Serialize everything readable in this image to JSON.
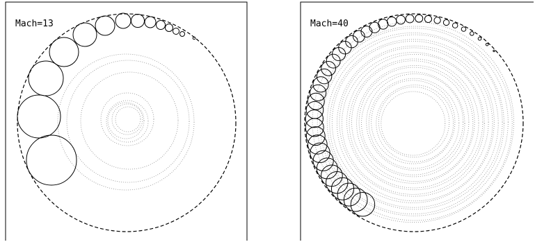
{
  "panels": [
    {
      "label": "Mach=13",
      "mach": 13,
      "boundary_style": "dashed",
      "guide_circle_style": "dotted gray",
      "circle_chain_count": 14
    },
    {
      "label": "Mach=40",
      "mach": 40,
      "boundary_style": "dashed",
      "guide_circle_style": "dotted gray",
      "circle_chain_count": 40
    }
  ],
  "colors": {
    "stroke": "#000000",
    "guide": "#8c8c8c",
    "background": "#ffffff"
  }
}
